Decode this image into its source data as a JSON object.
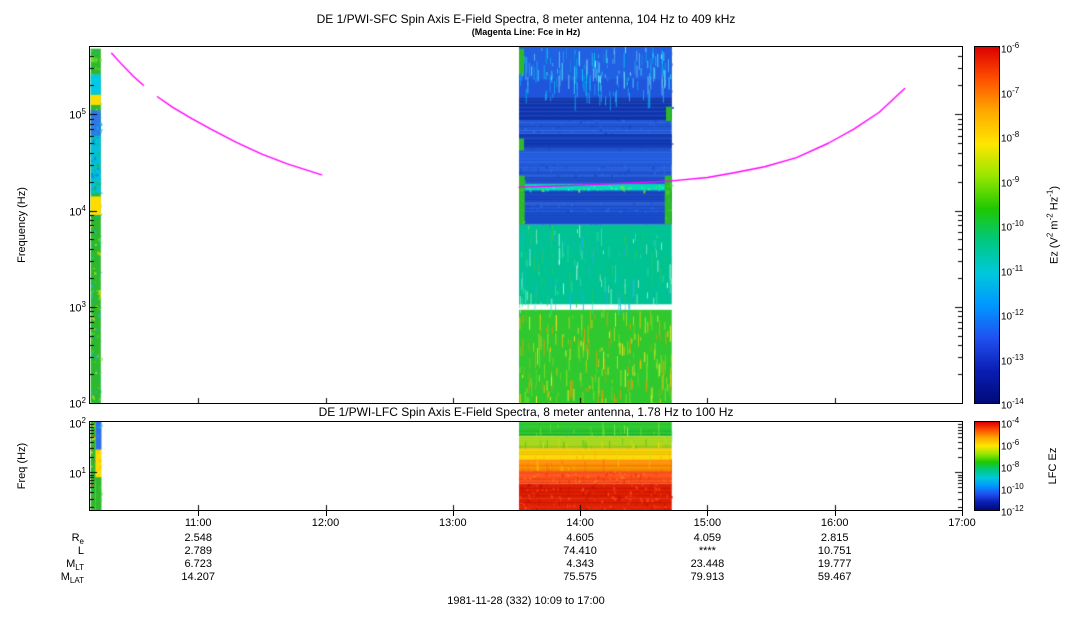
{
  "titles": {
    "sfc": "DE 1/PWI-SFC  Spin Axis E-Field Spectra, 8 meter antenna, 104 Hz to 409 kHz",
    "sfc_sub": "(Magenta Line: Fce in Hz)",
    "lfc": "DE 1/PWI-LFC  Spin Axis E-Field Spectra, 8 meter antenna, 1.78 Hz to 100 Hz"
  },
  "footer": "1981-11-28 (332) 10:09 to 17:00",
  "chart_data": {
    "type": "heatmap",
    "x_axis": {
      "start_hour": 10.15,
      "end_hour": 17.0,
      "tick_hours": [
        11,
        12,
        13,
        14,
        15,
        16,
        17
      ],
      "tick_labels": [
        "11:00",
        "12:00",
        "13:00",
        "14:00",
        "15:00",
        "16:00",
        "17:00"
      ]
    },
    "colorbar_stops": [
      "#dc0000",
      "#ff5000",
      "#ffaa00",
      "#ffe600",
      "#96e600",
      "#1ec800",
      "#00c882",
      "#00c8dc",
      "#0096ff",
      "#2050f0",
      "#0a1eb4",
      "#000a78"
    ],
    "sfc_panel": {
      "ylabel": "Frequency (Hz)",
      "f_min": 100,
      "f_max": 500000,
      "ytick_exponents": [
        2,
        3,
        4,
        5
      ],
      "colorbar": {
        "tick_exponents": [
          -6,
          -7,
          -8,
          -9,
          -10,
          -11,
          -12,
          -13,
          -14
        ],
        "label_segments": [
          [
            "t",
            "Ez (V"
          ],
          [
            "s",
            "2"
          ],
          [
            "t",
            " m"
          ],
          [
            "s",
            "-2"
          ],
          [
            "t",
            " Hz"
          ],
          [
            "s",
            "-1"
          ],
          [
            "t",
            ")"
          ]
        ]
      }
    },
    "lfc_panel": {
      "ylabel": "Freq (Hz)",
      "f_min": 1.78,
      "f_max": 100,
      "ytick_exponents": [
        1,
        2
      ],
      "colorbar": {
        "tick_exponents": [
          -4,
          -6,
          -8,
          -10,
          -12
        ],
        "label_segments": [
          [
            "t",
            "LFC Ez"
          ]
        ]
      }
    },
    "fce_line": {
      "color": "#ff00ff",
      "label": "Fce",
      "segments": [
        [
          [
            10.32,
            430000
          ],
          [
            10.4,
            330000
          ],
          [
            10.49,
            248000
          ],
          [
            10.57,
            200000
          ]
        ],
        [
          [
            10.68,
            152000
          ],
          [
            10.8,
            118000
          ],
          [
            10.95,
            90000
          ],
          [
            11.1,
            70000
          ],
          [
            11.3,
            51000
          ],
          [
            11.5,
            38500
          ],
          [
            11.7,
            30500
          ],
          [
            11.97,
            23500
          ]
        ],
        [
          [
            13.52,
            17500
          ],
          [
            13.8,
            18000
          ],
          [
            14.1,
            18600
          ],
          [
            14.4,
            19300
          ],
          [
            14.72,
            20300
          ],
          [
            15.0,
            22000
          ],
          [
            15.2,
            24500
          ],
          [
            15.45,
            28500
          ],
          [
            15.7,
            35500
          ],
          [
            15.95,
            50000
          ],
          [
            16.15,
            70000
          ],
          [
            16.35,
            105000
          ],
          [
            16.55,
            185000
          ]
        ]
      ]
    },
    "sfc_regions": [
      {
        "t0": 10.155,
        "t1": 10.235,
        "f0": 100,
        "f1": 480000,
        "base": "#2db82d",
        "speckles": [
          "#ffe100",
          "#7de62e",
          "#00c878",
          "#19b4e0"
        ],
        "density": 0.5
      },
      {
        "t0": 10.155,
        "t1": 10.235,
        "f0": 9000,
        "f1": 14000,
        "base": "#ffdc00",
        "density": 0
      },
      {
        "t0": 10.155,
        "t1": 10.235,
        "f0": 15000,
        "f1": 60000,
        "base": "#00c0dc",
        "speckles": [
          "#1e64e6",
          "#2db82d"
        ],
        "density": 0.5
      },
      {
        "t0": 10.155,
        "t1": 10.235,
        "f0": 60000,
        "f1": 110000,
        "base": "#2d78e6",
        "speckles": [
          "#00c0dc"
        ],
        "density": 0.3
      },
      {
        "t0": 10.155,
        "t1": 10.235,
        "f0": 125000,
        "f1": 160000,
        "base": "#ffdc00",
        "density": 0
      },
      {
        "t0": 10.155,
        "t1": 10.235,
        "f0": 160000,
        "f1": 260000,
        "base": "#00c8e6",
        "density": 0
      },
      {
        "t0": 13.52,
        "t1": 14.72,
        "f0": 100,
        "f1": 930,
        "base": "#2fc92f",
        "speckles": [
          "#fff028",
          "#ffc800",
          "#96e61e",
          "#ff9100"
        ],
        "density": 0.4,
        "streaks": true
      },
      {
        "t0": 13.52,
        "t1": 14.72,
        "f0": 1060,
        "f1": 7200,
        "base": "#00c393",
        "speckles": [
          "#36e0ae",
          "#2fc95a",
          "#19b4e0",
          "#d2ffe0"
        ],
        "density": 0.35,
        "streaks": true
      },
      {
        "t0": 13.52,
        "t1": 14.72,
        "f0": 7200,
        "f1": 500000,
        "base": "#2057d8",
        "speckles": [
          "#2d6ee8",
          "#1a47c2"
        ],
        "density": 0.2,
        "hstripes": true
      },
      {
        "t0": 13.52,
        "t1": 14.72,
        "f0": 7200,
        "f1": 9500,
        "base": "#1a4fd0",
        "hstripes": true
      },
      {
        "t0": 13.52,
        "t1": 14.72,
        "f0": 12000,
        "f1": 15500,
        "base": "#1a49c6",
        "hstripes": true
      },
      {
        "t0": 13.52,
        "t1": 14.72,
        "f0": 19000,
        "f1": 22000,
        "base": "#1e52d2",
        "hstripes": true
      },
      {
        "t0": 13.52,
        "t1": 14.72,
        "f0": 30000,
        "f1": 42000,
        "base": "#2864e8",
        "hstripes": true
      },
      {
        "t0": 13.52,
        "t1": 14.72,
        "f0": 44000,
        "f1": 62000,
        "base": "#123cb9",
        "hstripes": true
      },
      {
        "t0": 13.52,
        "t1": 14.72,
        "f0": 88000,
        "f1": 150000,
        "base": "#0f35ad",
        "hstripes": true
      },
      {
        "t0": 13.52,
        "t1": 14.72,
        "f0": 150000,
        "f1": 230000,
        "base": "#1e55dc",
        "speckles": [
          "#00c8f0",
          "#19b9ff"
        ],
        "density": 0.3,
        "streaks": true
      },
      {
        "t0": 13.52,
        "t1": 14.72,
        "f0": 230000,
        "f1": 500000,
        "base": "#2160e2",
        "speckles": [
          "#00d2ff",
          "#49e0ff",
          "#0fa5eb",
          "#8cefff"
        ],
        "density": 0.65,
        "streaks": true
      },
      {
        "t0": 13.52,
        "t1": 14.72,
        "f0": 16200,
        "f1": 18800,
        "base": "#00dcb4",
        "speckles": [
          "#96f000",
          "#00ffd2"
        ],
        "density": 0.5
      },
      {
        "t0": 13.52,
        "t1": 13.565,
        "f0": 7200,
        "f1": 23000,
        "base": "#2db82d",
        "speckles": [
          "#49d21e"
        ],
        "density": 0.3
      },
      {
        "t0": 14.665,
        "t1": 14.72,
        "f0": 7200,
        "f1": 23000,
        "base": "#2db82d",
        "speckles": [
          "#49d21e"
        ],
        "density": 0.3
      },
      {
        "t0": 13.52,
        "t1": 13.56,
        "f0": 42000,
        "f1": 56000,
        "base": "#2db82d",
        "density": 0
      },
      {
        "t0": 13.52,
        "t1": 13.56,
        "f0": 260000,
        "f1": 480000,
        "base": "#2db82d",
        "density": 0
      },
      {
        "t0": 14.675,
        "t1": 14.72,
        "f0": 85000,
        "f1": 120000,
        "base": "#2db82d",
        "density": 0
      }
    ],
    "lfc_regions": [
      {
        "t0": 10.155,
        "t1": 10.195,
        "f0": 1.78,
        "f1": 100,
        "base": "#2db82d",
        "speckles": [
          "#ffe100",
          "#e63c19"
        ],
        "density": 0.4
      },
      {
        "t0": 10.195,
        "t1": 10.24,
        "f0": 28,
        "f1": 100,
        "base": "#2d6ee8",
        "speckles": [
          "#19b4e6"
        ],
        "density": 0.3
      },
      {
        "t0": 10.195,
        "t1": 10.24,
        "f0": 8,
        "f1": 28,
        "base": "#ffdc00",
        "speckles": [
          "#ffb400"
        ],
        "density": 0.3
      },
      {
        "t0": 10.195,
        "t1": 10.24,
        "f0": 1.78,
        "f1": 8,
        "base": "#2db82d",
        "speckles": [
          "#49d21e"
        ],
        "density": 0.2
      },
      {
        "t0": 13.52,
        "t1": 14.72,
        "f0": 52,
        "f1": 100,
        "base": "#2dc82d",
        "speckles": [
          "#73e62e",
          "#00c87d",
          "#b9f04b"
        ],
        "density": 0.35,
        "streaks": true,
        "hstripes": true
      },
      {
        "t0": 13.52,
        "t1": 14.72,
        "f0": 30,
        "f1": 52,
        "base": "#a5d719",
        "speckles": [
          "#ffe100",
          "#50c81e"
        ],
        "density": 0.4,
        "streaks": true,
        "hstripes": true
      },
      {
        "t0": 13.52,
        "t1": 14.72,
        "f0": 18,
        "f1": 30,
        "base": "#ffd700",
        "speckles": [
          "#ffb400",
          "#d2e60f"
        ],
        "density": 0.4,
        "streaks": true,
        "hstripes": true
      },
      {
        "t0": 13.52,
        "t1": 14.72,
        "f0": 10.5,
        "f1": 18,
        "base": "#ff9100",
        "speckles": [
          "#ffc800",
          "#ff6419"
        ],
        "density": 0.4,
        "streaks": true,
        "hstripes": true
      },
      {
        "t0": 13.52,
        "t1": 14.72,
        "f0": 6,
        "f1": 10.5,
        "base": "#ff5019",
        "speckles": [
          "#ff7d28",
          "#e63200"
        ],
        "density": 0.4,
        "hstripes": true
      },
      {
        "t0": 13.52,
        "t1": 14.72,
        "f0": 1.78,
        "f1": 6,
        "base": "#e11e00",
        "speckles": [
          "#c80f00",
          "#ff4619"
        ],
        "density": 0.4,
        "hstripes": true
      }
    ],
    "ephemeris": {
      "row_labels": [
        {
          "main": "R",
          "sub": "e"
        },
        {
          "main": "L",
          "sub": ""
        },
        {
          "main": "M",
          "sub": "LT"
        },
        {
          "main": "M",
          "sub": "LAT"
        }
      ],
      "column_hours": [
        11,
        14,
        15,
        16
      ],
      "values": [
        [
          "2.548",
          "4.605",
          "4.059",
          "2.815"
        ],
        [
          "2.789",
          "74.410",
          "****",
          "10.751"
        ],
        [
          "6.723",
          "4.343",
          "23.448",
          "19.777"
        ],
        [
          "14.207",
          "75.575",
          "79.913",
          "59.467"
        ]
      ]
    }
  }
}
